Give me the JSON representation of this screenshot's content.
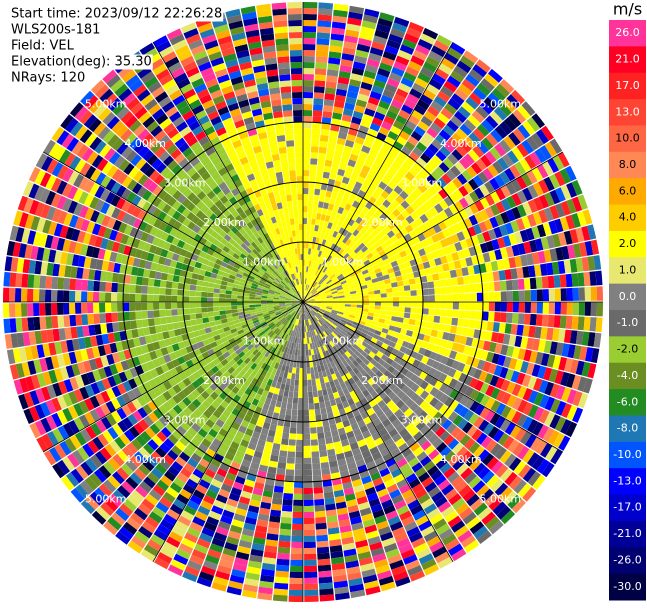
{
  "header": {
    "lines": [
      "Start time: 2023/09/12 22:26:28",
      "WLS200s-181",
      "Field: VEL",
      "Elevation(deg): 35.30",
      "NRays: 120"
    ]
  },
  "colorbar": {
    "unit": "m/s",
    "ticks": [
      {
        "value": 26,
        "label": "26.0"
      },
      {
        "value": 21,
        "label": "21.0"
      },
      {
        "value": 17,
        "label": "17.0"
      },
      {
        "value": 13,
        "label": "13.0"
      },
      {
        "value": 10,
        "label": "10.0"
      },
      {
        "value": 8,
        "label": "8.0"
      },
      {
        "value": 6,
        "label": "6.0"
      },
      {
        "value": 4,
        "label": "4.0"
      },
      {
        "value": 2,
        "label": "2.0"
      },
      {
        "value": 1,
        "label": "1.0"
      },
      {
        "value": 0,
        "label": "0.0"
      },
      {
        "value": -1,
        "label": "-1.0"
      },
      {
        "value": -2,
        "label": "-2.0"
      },
      {
        "value": -4,
        "label": "-4.0"
      },
      {
        "value": -6,
        "label": "-6.0"
      },
      {
        "value": -8,
        "label": "-8.0"
      },
      {
        "value": -10,
        "label": "-10.0"
      },
      {
        "value": -13,
        "label": "-13.0"
      },
      {
        "value": -17,
        "label": "-17.0"
      },
      {
        "value": -21,
        "label": "-21.0"
      },
      {
        "value": -26,
        "label": "-26.0"
      },
      {
        "value": -30,
        "label": "-30.0"
      }
    ],
    "colors": [
      "#ff3399",
      "#ff0022",
      "#ff2222",
      "#ff4433",
      "#ff6644",
      "#ff8855",
      "#ffaa00",
      "#ffcc00",
      "#ffff00",
      "#e8e870",
      "#808080",
      "#6a6a6a",
      "#9acd32",
      "#6b8e23",
      "#228b22",
      "#1f78b4",
      "#0055ff",
      "#0000ff",
      "#0000cc",
      "#000099",
      "#000070",
      "#000044"
    ]
  },
  "range_rings": {
    "values": [
      1,
      2,
      3,
      4,
      5
    ],
    "labels": [
      "1.00km",
      "2.00km",
      "3.00km",
      "4.00km",
      "5.00km"
    ]
  }
}
